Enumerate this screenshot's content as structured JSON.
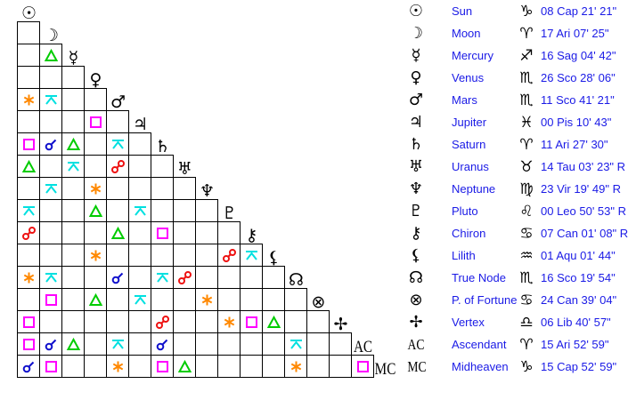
{
  "aspect_colors": {
    "conjunction": "#1010cc",
    "opposition": "#ee1111",
    "trine": "#00cc00",
    "square": "#ff00ff",
    "sextile": "#ff8800",
    "quincunx": "#00e0e0"
  },
  "planets": [
    {
      "glyph": "☉",
      "icon": "sun-icon",
      "name": "Sun",
      "sign_glyph": "♑",
      "sign_icon": "capricorn-icon",
      "position": "08 Cap 21' 21\""
    },
    {
      "glyph": "☽",
      "icon": "moon-icon",
      "name": "Moon",
      "sign_glyph": "♈",
      "sign_icon": "aries-icon",
      "position": "17 Ari 07' 25\""
    },
    {
      "glyph": "☿",
      "icon": "mercury-icon",
      "name": "Mercury",
      "sign_glyph": "♐",
      "sign_icon": "sagittarius-icon",
      "position": "16 Sag 04' 42\""
    },
    {
      "glyph": "♀",
      "icon": "venus-icon",
      "name": "Venus",
      "sign_glyph": "♏",
      "sign_icon": "scorpio-icon",
      "position": "26 Sco 28' 06\""
    },
    {
      "glyph": "♂",
      "icon": "mars-icon",
      "name": "Mars",
      "sign_glyph": "♏",
      "sign_icon": "scorpio-icon",
      "position": "11 Sco 41' 21\""
    },
    {
      "glyph": "♃",
      "icon": "jupiter-icon",
      "name": "Jupiter",
      "sign_glyph": "♓",
      "sign_icon": "pisces-icon",
      "position": "00 Pis 10' 43\""
    },
    {
      "glyph": "♄",
      "icon": "saturn-icon",
      "name": "Saturn",
      "sign_glyph": "♈",
      "sign_icon": "aries-icon",
      "position": "11 Ari 27' 30\""
    },
    {
      "glyph": "♅",
      "icon": "uranus-icon",
      "name": "Uranus",
      "sign_glyph": "♉",
      "sign_icon": "taurus-icon",
      "position": "14 Tau 03' 23\" R"
    },
    {
      "glyph": "♆",
      "icon": "neptune-icon",
      "name": "Neptune",
      "sign_glyph": "♍",
      "sign_icon": "virgo-icon",
      "position": "23 Vir 19' 49\" R"
    },
    {
      "glyph": "♇",
      "icon": "pluto-icon",
      "name": "Pluto",
      "sign_glyph": "♌",
      "sign_icon": "leo-icon",
      "position": "00 Leo 50' 53\" R"
    },
    {
      "glyph": "⚷",
      "icon": "chiron-icon",
      "name": "Chiron",
      "sign_glyph": "♋",
      "sign_icon": "cancer-icon",
      "position": "07 Can 01' 08\" R"
    },
    {
      "glyph": "⚸",
      "icon": "lilith-icon",
      "name": "Lilith",
      "sign_glyph": "♒",
      "sign_icon": "aquarius-icon",
      "position": "01 Aqu 01' 44\""
    },
    {
      "glyph": "☊",
      "icon": "true-node-icon",
      "name": "True Node",
      "sign_glyph": "♏",
      "sign_icon": "scorpio-icon",
      "position": "16 Sco 19' 54\""
    },
    {
      "glyph": "⊗",
      "icon": "part-of-fortune-icon",
      "name": "P. of Fortune",
      "sign_glyph": "♋",
      "sign_icon": "cancer-icon",
      "position": "24 Can 39' 04\""
    },
    {
      "glyph": "✢",
      "icon": "vertex-icon",
      "name": "Vertex",
      "sign_glyph": "♎",
      "sign_icon": "libra-icon",
      "position": "06 Lib 40' 57\""
    },
    {
      "glyph": "AC",
      "icon": "ascendant-label",
      "name": "Ascendant",
      "sign_glyph": "♈",
      "sign_icon": "aries-icon",
      "position": "15 Ari 52' 59\""
    },
    {
      "glyph": "MC",
      "icon": "midheaven-label",
      "name": "Midheaven",
      "sign_glyph": "♑",
      "sign_icon": "capricorn-icon",
      "position": "15 Cap 52' 59\""
    }
  ],
  "aspect_grid": [
    [
      ""
    ],
    [
      "",
      "trine"
    ],
    [
      "",
      "",
      ""
    ],
    [
      "sextile",
      "quincunx",
      "",
      ""
    ],
    [
      "",
      "",
      "",
      "square",
      ""
    ],
    [
      "square",
      "conjunction",
      "trine",
      "",
      "quincunx",
      ""
    ],
    [
      "trine",
      "",
      "quincunx",
      "",
      "opposition",
      "",
      ""
    ],
    [
      "",
      "quincunx",
      "",
      "sextile",
      "",
      "",
      "",
      ""
    ],
    [
      "quincunx",
      "",
      "",
      "trine",
      "",
      "quincunx",
      "",
      "",
      ""
    ],
    [
      "opposition",
      "",
      "",
      "",
      "trine",
      "",
      "square",
      "",
      "",
      ""
    ],
    [
      "",
      "",
      "",
      "sextile",
      "",
      "",
      "",
      "",
      "",
      "opposition",
      "quincunx"
    ],
    [
      "sextile",
      "quincunx",
      "",
      "",
      "conjunction",
      "",
      "quincunx",
      "opposition",
      "",
      "",
      "",
      ""
    ],
    [
      "",
      "square",
      "",
      "trine",
      "",
      "quincunx",
      "",
      "",
      "sextile",
      "",
      "",
      "",
      ""
    ],
    [
      "square",
      "",
      "",
      "",
      "",
      "",
      "opposition",
      "",
      "",
      "sextile",
      "square",
      "trine",
      "",
      ""
    ],
    [
      "square",
      "conjunction",
      "trine",
      "",
      "quincunx",
      "",
      "conjunction",
      "",
      "",
      "",
      "",
      "",
      "quincunx",
      "",
      ""
    ],
    [
      "conjunction",
      "square",
      "",
      "",
      "sextile",
      "",
      "square",
      "trine",
      "",
      "",
      "",
      "",
      "sextile",
      "",
      "",
      "square"
    ]
  ]
}
